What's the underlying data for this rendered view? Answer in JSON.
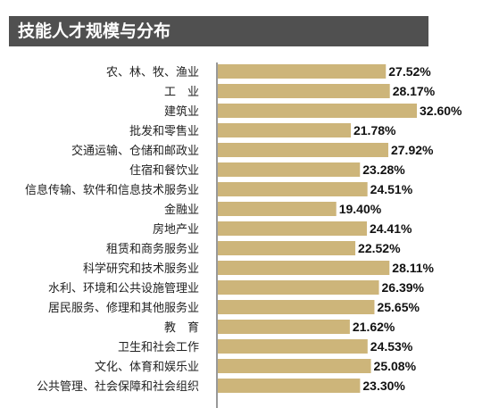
{
  "chart_data": {
    "type": "bar",
    "orientation": "horizontal",
    "title": "技能人才规模与分布",
    "categories": [
      "农、林、牧、渔业",
      "工　业",
      "建筑业",
      "批发和零售业",
      "交通运输、仓储和邮政业",
      "住宿和餐饮业",
      "信息传输、软件和信息技术服务业",
      "金融业",
      "房地产业",
      "租赁和商务服务业",
      "科学研究和技术服务业",
      "水利、环境和公共设施管理业",
      "居民服务、修理和其他服务业",
      "教　育",
      "卫生和社会工作",
      "文化、体育和娱乐业",
      "公共管理、社会保障和社会组织"
    ],
    "values": [
      27.52,
      28.17,
      32.6,
      21.78,
      27.92,
      23.28,
      24.51,
      19.4,
      24.41,
      22.52,
      28.11,
      26.39,
      25.65,
      21.62,
      24.53,
      25.08,
      23.3
    ],
    "value_labels": [
      "27.52%",
      "28.17%",
      "32.60%",
      "21.78%",
      "27.92%",
      "23.28%",
      "24.51%",
      "19.40%",
      "24.41%",
      "22.52%",
      "28.11%",
      "26.39%",
      "25.65%",
      "21.62%",
      "24.53%",
      "25.08%",
      "23.30%"
    ],
    "unit": "%",
    "grid": false,
    "legend": "none",
    "colors": {
      "bar": "#cdb57a",
      "title_bg": "#505050",
      "title_text": "#ffffff",
      "axis": "#333333"
    }
  }
}
